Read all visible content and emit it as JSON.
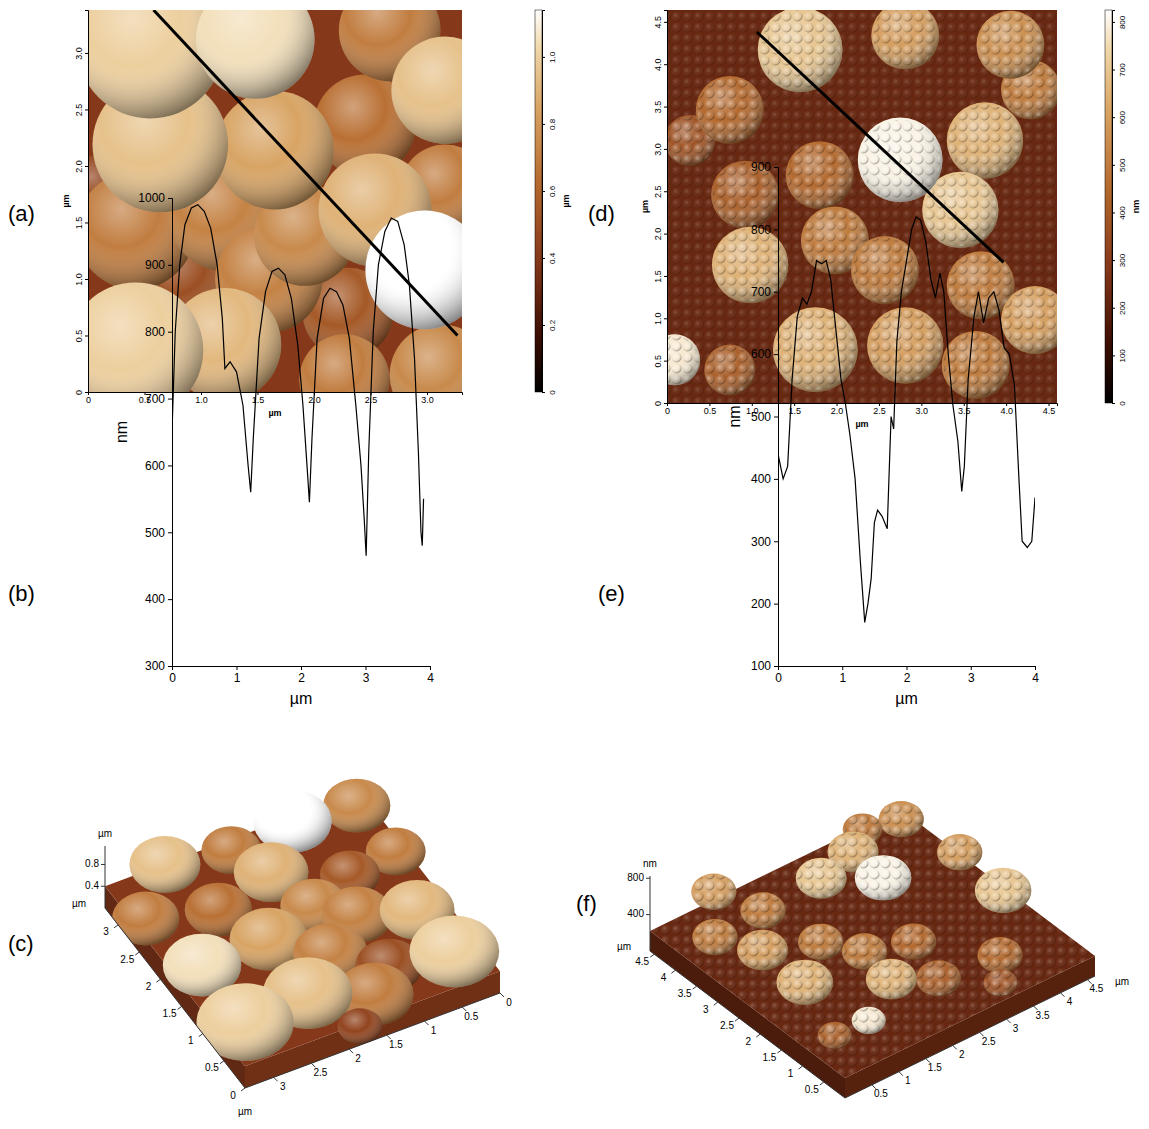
{
  "chart_data": [
    {
      "type": "heatmap",
      "panel": "(a)",
      "x_label": "µm",
      "y_label": "µm",
      "xlim": [
        0,
        3.31
      ],
      "ylim": [
        0,
        3.38
      ],
      "xticks": [
        0,
        0.5,
        {
          "value": 1,
          "label": "1.0"
        },
        1.5,
        {
          "value": 2,
          "label": "2.0"
        },
        2.5,
        {
          "value": 3,
          "label": "3.0"
        }
      ],
      "yticks": [
        0,
        0.5,
        {
          "value": 1,
          "label": "1.0"
        },
        1.5,
        {
          "value": 2,
          "label": "2.0"
        },
        2.5,
        {
          "value": 3,
          "label": "3.0"
        }
      ],
      "colorbar": {
        "label": "µm",
        "range": [
          0,
          1.14
        ],
        "ticks": [
          0,
          0.2,
          0.4,
          0.6,
          0.8,
          {
            "value": 1,
            "label": "1.0"
          }
        ]
      },
      "base_height": 0.4,
      "particles": {
        "x": [
          0.55,
          1.48,
          2.67,
          3.16,
          0.64,
          1.65,
          2.45,
          0.42,
          1.21,
          2.54,
          3.16,
          1.92,
          2.98,
          0.86,
          1.6,
          2.3,
          0.42,
          1.21,
          2.27,
          3.12,
          0.1
        ],
        "y": [
          3.07,
          3.12,
          3.2,
          2.67,
          2.19,
          2.14,
          2.36,
          1.43,
          1.57,
          1.61,
          1.79,
          1.39,
          1.08,
          0.99,
          1.0,
          0.7,
          0.37,
          0.42,
          0.11,
          0.15,
          1.8
        ],
        "d": [
          1.3,
          1.05,
          0.9,
          0.95,
          1.2,
          1.05,
          0.9,
          1.05,
          1.0,
          1.0,
          0.8,
          0.9,
          1.05,
          0.9,
          0.95,
          0.8,
          1.2,
          1.0,
          0.8,
          0.9,
          0.6
        ],
        "h": [
          1.0,
          1.05,
          0.7,
          0.95,
          0.95,
          0.85,
          0.65,
          0.7,
          0.72,
          0.9,
          0.7,
          0.75,
          1.14,
          0.5,
          0.72,
          0.55,
          1.0,
          0.92,
          0.7,
          0.75,
          0.45
        ]
      },
      "profile": {
        "x": [
          0.58,
          3.27
        ],
        "y": [
          3.38,
          0.5
        ]
      }
    },
    {
      "type": "line",
      "panel": "(b)",
      "x_label": "µm",
      "y_label": "nm",
      "color": "#000000",
      "xlim": [
        0,
        4
      ],
      "ylim": [
        300,
        1000
      ],
      "xticks": [
        0,
        1,
        2,
        3,
        4
      ],
      "yticks": [
        300,
        400,
        500,
        600,
        700,
        800,
        900,
        1000
      ],
      "x": [
        0,
        0.05,
        0.12,
        0.2,
        0.3,
        0.4,
        0.5,
        0.6,
        0.7,
        0.78,
        0.82,
        0.9,
        1.0,
        1.1,
        1.18,
        1.22,
        1.26,
        1.35,
        1.45,
        1.55,
        1.65,
        1.75,
        1.85,
        1.95,
        2.03,
        2.1,
        2.13,
        2.17,
        2.25,
        2.35,
        2.45,
        2.55,
        2.65,
        2.75,
        2.85,
        2.93,
        2.98,
        3.01,
        3.05,
        3.12,
        3.2,
        3.3,
        3.4,
        3.5,
        3.6,
        3.68,
        3.76,
        3.82,
        3.86,
        3.88,
        3.9
      ],
      "values": [
        650,
        800,
        900,
        960,
        985,
        990,
        980,
        955,
        900,
        820,
        745,
        755,
        740,
        690,
        600,
        560,
        640,
        790,
        860,
        890,
        895,
        885,
        850,
        780,
        690,
        590,
        545,
        640,
        790,
        850,
        865,
        860,
        840,
        790,
        690,
        600,
        520,
        465,
        620,
        800,
        900,
        950,
        970,
        965,
        930,
        870,
        760,
        620,
        500,
        480,
        550
      ]
    },
    {
      "type": "surface3d",
      "panel": "(c)",
      "x_label": "µm",
      "y_label": "µm",
      "z_label": "µm",
      "xlim": [
        0,
        3.31
      ],
      "ylim": [
        0,
        3.38
      ],
      "zlim": [
        0,
        1.14
      ],
      "xticks": [
        0,
        0.5,
        1,
        1.5,
        2,
        2.5,
        3
      ],
      "yticks": [
        0,
        0.5,
        1,
        1.5,
        2,
        2.5,
        3
      ],
      "zticks": [
        0.4,
        0.8
      ],
      "base_height": 0.4,
      "particles": {
        "x": [
          0.55,
          1.48,
          2.67,
          3.16,
          0.64,
          1.65,
          2.45,
          0.42,
          1.21,
          2.54,
          3.16,
          1.92,
          2.98,
          0.86,
          1.6,
          2.3,
          0.42,
          1.21,
          2.27,
          3.12,
          0.1
        ],
        "y": [
          3.07,
          3.12,
          3.2,
          2.67,
          2.19,
          2.14,
          2.36,
          1.43,
          1.57,
          1.61,
          1.79,
          1.39,
          1.08,
          0.99,
          1.0,
          0.7,
          0.37,
          0.42,
          0.11,
          0.15,
          1.8
        ],
        "d": [
          1.3,
          1.05,
          0.9,
          0.95,
          1.2,
          1.05,
          0.9,
          1.05,
          1.0,
          1.0,
          0.8,
          0.9,
          1.05,
          0.9,
          0.95,
          0.8,
          1.2,
          1.0,
          0.8,
          0.9,
          0.6
        ],
        "h": [
          1.0,
          1.05,
          0.7,
          0.95,
          0.95,
          0.85,
          0.65,
          0.7,
          0.72,
          0.9,
          0.7,
          0.75,
          1.14,
          0.5,
          0.72,
          0.55,
          1.0,
          0.92,
          0.7,
          0.75,
          0.45
        ]
      }
    },
    {
      "type": "heatmap",
      "panel": "(d)",
      "x_label": "µm",
      "y_label": "µm",
      "xlim": [
        0,
        4.6
      ],
      "ylim": [
        0,
        4.64
      ],
      "xticks": [
        0,
        0.5,
        {
          "value": 1,
          "label": "1.0"
        },
        1.5,
        {
          "value": 2,
          "label": "2.0"
        },
        2.5,
        {
          "value": 3,
          "label": "3.0"
        },
        3.5,
        {
          "value": 4,
          "label": "4.0"
        },
        4.5
      ],
      "yticks": [
        0,
        0.5,
        {
          "value": 1,
          "label": "1.0"
        },
        1.5,
        {
          "value": 2,
          "label": "2.0"
        },
        2.5,
        {
          "value": 3,
          "label": "3.0"
        },
        3.5,
        {
          "value": 4,
          "label": "4.0"
        },
        4.5
      ],
      "colorbar": {
        "label": "nm",
        "range": [
          0,
          825
        ],
        "ticks": [
          0,
          100,
          200,
          300,
          400,
          500,
          600,
          700,
          800
        ]
      },
      "base_height": 220,
      "particles": {
        "x": [
          1.57,
          2.81,
          4.05,
          0.74,
          3.75,
          2.75,
          3.46,
          4.29,
          1.8,
          0.92,
          0.98,
          1.98,
          2.57,
          3.7,
          4.34,
          1.75,
          2.81,
          3.64,
          0.27,
          0.09,
          0.74
        ],
        "y": [
          4.17,
          4.34,
          4.23,
          3.46,
          3.1,
          2.87,
          2.28,
          3.7,
          2.69,
          2.46,
          1.63,
          1.92,
          1.57,
          1.39,
          0.98,
          0.63,
          0.68,
          0.45,
          3.1,
          0.51,
          0.39
        ],
        "d": [
          1.0,
          0.8,
          0.8,
          0.8,
          0.9,
          1.0,
          0.9,
          0.7,
          0.8,
          0.8,
          0.9,
          0.8,
          0.8,
          0.8,
          0.8,
          1.0,
          0.9,
          0.8,
          0.6,
          0.6,
          0.6
        ],
        "h": [
          700,
          600,
          560,
          450,
          650,
          800,
          700,
          500,
          450,
          420,
          650,
          500,
          500,
          500,
          600,
          650,
          600,
          500,
          380,
          780,
          420
        ]
      },
      "profile": {
        "x": [
          1.06,
          3.97
        ],
        "y": [
          4.38,
          1.66
        ]
      }
    },
    {
      "type": "line",
      "panel": "(e)",
      "x_label": "µm",
      "y_label": "nm",
      "color": "#000000",
      "xlim": [
        0,
        4
      ],
      "ylim": [
        100,
        900
      ],
      "xticks": [
        0,
        1,
        2,
        3,
        4
      ],
      "yticks": [
        100,
        200,
        300,
        400,
        500,
        600,
        700,
        800,
        900
      ],
      "x": [
        0,
        0.08,
        0.15,
        0.22,
        0.3,
        0.38,
        0.45,
        0.52,
        0.6,
        0.68,
        0.75,
        0.82,
        0.9,
        0.98,
        1.05,
        1.12,
        1.2,
        1.28,
        1.35,
        1.4,
        1.45,
        1.5,
        1.55,
        1.62,
        1.7,
        1.76,
        1.8,
        1.85,
        1.92,
        2.0,
        2.08,
        2.15,
        2.22,
        2.3,
        2.38,
        2.45,
        2.52,
        2.58,
        2.65,
        2.72,
        2.8,
        2.86,
        2.9,
        2.96,
        3.05,
        3.12,
        3.2,
        3.28,
        3.36,
        3.44,
        3.52,
        3.6,
        3.68,
        3.75,
        3.8,
        3.88,
        3.95,
        4.0
      ],
      "values": [
        440,
        400,
        420,
        560,
        660,
        690,
        680,
        700,
        750,
        745,
        750,
        720,
        640,
        560,
        520,
        470,
        400,
        270,
        170,
        200,
        240,
        330,
        350,
        340,
        320,
        500,
        480,
        620,
        700,
        750,
        800,
        820,
        815,
        780,
        720,
        690,
        730,
        700,
        600,
        520,
        460,
        380,
        420,
        560,
        660,
        700,
        650,
        690,
        700,
        670,
        610,
        600,
        550,
        400,
        300,
        290,
        300,
        370
      ]
    },
    {
      "type": "surface3d",
      "panel": "(f)",
      "x_label": "µm",
      "y_label": "µm",
      "z_label": "nm",
      "xlim": [
        0,
        4.6
      ],
      "ylim": [
        0,
        4.64
      ],
      "zlim": [
        0,
        825
      ],
      "xticks": [
        0.5,
        1,
        1.5,
        2,
        2.5,
        3,
        3.5,
        4,
        4.5
      ],
      "yticks": [
        0.5,
        1,
        1.5,
        2,
        2.5,
        3,
        3.5,
        4,
        4.5
      ],
      "zticks": [
        400,
        800
      ],
      "base_height": 220,
      "particles": {
        "x": [
          1.57,
          2.81,
          4.05,
          0.74,
          3.75,
          2.75,
          3.46,
          4.29,
          1.8,
          0.92,
          0.98,
          1.98,
          2.57,
          3.7,
          4.34,
          1.75,
          2.81,
          3.64,
          0.27,
          0.09,
          0.74
        ],
        "y": [
          4.17,
          4.34,
          4.23,
          3.46,
          3.1,
          2.87,
          2.28,
          3.7,
          2.69,
          2.46,
          1.63,
          1.92,
          1.57,
          1.39,
          0.98,
          0.63,
          0.68,
          0.45,
          3.1,
          0.51,
          0.39
        ],
        "d": [
          1.0,
          0.8,
          0.8,
          0.8,
          0.9,
          1.0,
          0.9,
          0.7,
          0.8,
          0.8,
          0.9,
          0.8,
          0.8,
          0.8,
          0.8,
          1.0,
          0.9,
          0.8,
          0.6,
          0.6,
          0.6
        ],
        "h": [
          700,
          600,
          560,
          450,
          650,
          800,
          700,
          500,
          450,
          420,
          650,
          500,
          500,
          500,
          600,
          650,
          600,
          500,
          380,
          780,
          420
        ]
      }
    }
  ]
}
